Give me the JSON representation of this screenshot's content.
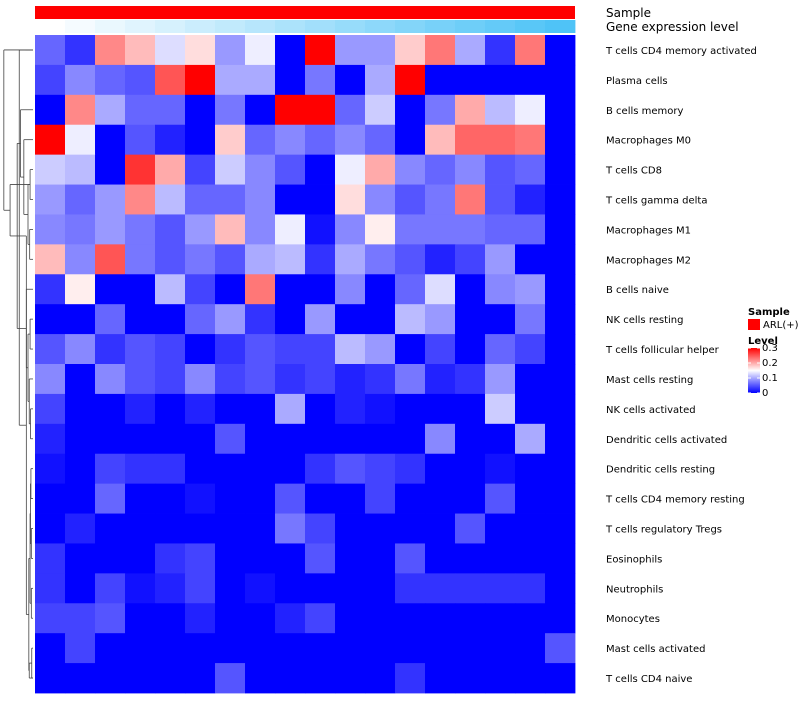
{
  "chart_data": {
    "type": "heatmap",
    "annotations": [
      {
        "name": "Sample",
        "kind": "categorical",
        "color": "#ff0000"
      },
      {
        "name": "Gene expression level",
        "kind": "gradient",
        "from": "#ffffff",
        "to": "#4fc3f7"
      }
    ],
    "legend": {
      "sample_title": "Sample",
      "sample_entry": "ARL(+)",
      "sample_color": "#ff0000",
      "level_title": "Level",
      "ticks": [
        "0.3",
        "0.2",
        "0.1",
        "0"
      ],
      "tick_values": [
        0.3,
        0.2,
        0.1,
        0
      ],
      "range": [
        0,
        0.3
      ]
    },
    "color_scale": {
      "low": "#0000ff",
      "mid": "#ffffff",
      "high": "#ff0000",
      "domain": [
        0,
        0.15,
        0.3
      ]
    },
    "rows": [
      "T cells CD4 memory activated",
      "Plasma cells",
      "B cells memory",
      "Macrophages M0",
      "T cells CD8",
      "T cells gamma delta",
      "Macrophages M1",
      "Macrophages M2",
      "B cells naive",
      "NK cells resting",
      "T cells follicular helper",
      "Mast cells resting",
      "NK cells activated",
      "Dendritic cells activated",
      "Dendritic cells resting",
      "T cells CD4 memory resting",
      "T cells regulatory  Tregs",
      "Eosinophils",
      "Neutrophils",
      "Monocytes",
      "Mast cells activated",
      "T cells CD4 naive"
    ],
    "n_columns": 18,
    "values": [
      [
        0.06,
        0.03,
        0.22,
        0.19,
        0.13,
        0.17,
        0.09,
        0.14,
        0.0,
        0.3,
        0.09,
        0.09,
        0.18,
        0.23,
        0.1,
        0.03,
        0.23,
        0.0
      ],
      [
        0.04,
        0.08,
        0.06,
        0.05,
        0.25,
        0.3,
        0.1,
        0.1,
        0.0,
        0.07,
        0.0,
        0.1,
        0.3,
        0.0,
        0.0,
        0.0,
        0.0,
        0.0
      ],
      [
        0.0,
        0.22,
        0.1,
        0.06,
        0.06,
        0.0,
        0.07,
        0.0,
        0.3,
        0.3,
        0.06,
        0.12,
        0.0,
        0.07,
        0.2,
        0.11,
        0.14,
        0.0
      ],
      [
        0.3,
        0.14,
        0.0,
        0.05,
        0.02,
        0.0,
        0.18,
        0.06,
        0.08,
        0.06,
        0.08,
        0.06,
        0.0,
        0.19,
        0.24,
        0.24,
        0.23,
        0.0
      ],
      [
        0.12,
        0.11,
        0.0,
        0.27,
        0.2,
        0.04,
        0.12,
        0.08,
        0.05,
        0.0,
        0.14,
        0.2,
        0.08,
        0.06,
        0.08,
        0.05,
        0.06,
        0.0
      ],
      [
        0.09,
        0.06,
        0.09,
        0.22,
        0.11,
        0.06,
        0.06,
        0.08,
        0.0,
        0.0,
        0.17,
        0.08,
        0.05,
        0.07,
        0.23,
        0.05,
        0.02,
        0.0
      ],
      [
        0.08,
        0.07,
        0.09,
        0.07,
        0.05,
        0.09,
        0.19,
        0.08,
        0.14,
        0.01,
        0.08,
        0.16,
        0.07,
        0.07,
        0.07,
        0.06,
        0.06,
        0.0
      ],
      [
        0.19,
        0.08,
        0.25,
        0.07,
        0.05,
        0.07,
        0.05,
        0.1,
        0.11,
        0.03,
        0.1,
        0.07,
        0.05,
        0.02,
        0.04,
        0.09,
        0.0,
        0.0
      ],
      [
        0.03,
        0.16,
        0.0,
        0.0,
        0.11,
        0.04,
        0.0,
        0.23,
        0.0,
        0.0,
        0.08,
        0.0,
        0.06,
        0.13,
        0.0,
        0.08,
        0.09,
        0.0
      ],
      [
        0.0,
        0.0,
        0.06,
        0.0,
        0.0,
        0.06,
        0.09,
        0.03,
        0.0,
        0.09,
        0.0,
        0.0,
        0.11,
        0.09,
        0.0,
        0.0,
        0.07,
        0.0
      ],
      [
        0.05,
        0.08,
        0.03,
        0.05,
        0.04,
        0.0,
        0.03,
        0.05,
        0.04,
        0.04,
        0.11,
        0.09,
        0.0,
        0.04,
        0.0,
        0.06,
        0.04,
        0.0
      ],
      [
        0.08,
        0.0,
        0.08,
        0.05,
        0.04,
        0.08,
        0.04,
        0.05,
        0.03,
        0.04,
        0.02,
        0.03,
        0.07,
        0.02,
        0.03,
        0.09,
        0.0,
        0.0
      ],
      [
        0.04,
        0.0,
        0.0,
        0.02,
        0.0,
        0.02,
        0.0,
        0.0,
        0.1,
        0.0,
        0.02,
        0.01,
        0.0,
        0.0,
        0.0,
        0.12,
        0.0,
        0.0
      ],
      [
        0.02,
        0.0,
        0.0,
        0.0,
        0.0,
        0.0,
        0.05,
        0.0,
        0.0,
        0.0,
        0.0,
        0.0,
        0.0,
        0.08,
        0.0,
        0.0,
        0.1,
        0.0
      ],
      [
        0.01,
        0.0,
        0.04,
        0.03,
        0.03,
        0.0,
        0.0,
        0.0,
        0.0,
        0.03,
        0.05,
        0.04,
        0.03,
        0.0,
        0.0,
        0.01,
        0.0,
        0.0
      ],
      [
        0.0,
        0.0,
        0.06,
        0.0,
        0.0,
        0.01,
        0.0,
        0.0,
        0.05,
        0.0,
        0.0,
        0.04,
        0.0,
        0.0,
        0.0,
        0.05,
        0.0,
        0.0
      ],
      [
        0.0,
        0.02,
        0.0,
        0.0,
        0.0,
        0.0,
        0.0,
        0.0,
        0.07,
        0.04,
        0.0,
        0.0,
        0.0,
        0.0,
        0.05,
        0.0,
        0.0,
        0.0
      ],
      [
        0.03,
        0.0,
        0.0,
        0.0,
        0.03,
        0.04,
        0.0,
        0.0,
        0.0,
        0.05,
        0.0,
        0.0,
        0.05,
        0.0,
        0.0,
        0.0,
        0.0,
        0.0
      ],
      [
        0.03,
        0.0,
        0.04,
        0.01,
        0.02,
        0.04,
        0.0,
        0.01,
        0.0,
        0.0,
        0.0,
        0.0,
        0.03,
        0.03,
        0.03,
        0.03,
        0.03,
        0.0
      ],
      [
        0.04,
        0.04,
        0.05,
        0.0,
        0.0,
        0.02,
        0.0,
        0.0,
        0.02,
        0.04,
        0.0,
        0.0,
        0.0,
        0.0,
        0.0,
        0.0,
        0.0,
        0.0
      ],
      [
        0.0,
        0.04,
        0.0,
        0.0,
        0.0,
        0.0,
        0.0,
        0.0,
        0.0,
        0.0,
        0.0,
        0.0,
        0.0,
        0.0,
        0.0,
        0.0,
        0.0,
        0.05
      ],
      [
        0.0,
        0.0,
        0.0,
        0.0,
        0.0,
        0.0,
        0.05,
        0.0,
        0.0,
        0.0,
        0.0,
        0.0,
        0.03,
        0.0,
        0.0,
        0.0,
        0.0,
        0.0
      ]
    ],
    "dendrogram": {
      "merges": [
        [
          1,
          0,
          0.18
        ],
        [
          -5,
          -6,
          0.07
        ],
        [
          -7,
          -8,
          0.08
        ],
        [
          2,
          3,
          0.12
        ],
        [
          -4,
          4,
          0.22
        ],
        [
          -3,
          5,
          0.3
        ],
        [
          -10,
          -11,
          0.07
        ],
        [
          -13,
          -14,
          0.06
        ],
        [
          -12,
          8,
          0.09
        ],
        [
          7,
          9,
          0.12
        ],
        [
          -9,
          10,
          0.16
        ],
        [
          6,
          11,
          0.38
        ],
        [
          -15,
          -16,
          0.05
        ],
        [
          -17,
          -18,
          0.04
        ],
        [
          -19,
          -20,
          0.04
        ],
        [
          13,
          14,
          0.06
        ],
        [
          -21,
          -22,
          0.03
        ],
        [
          15,
          16,
          0.07
        ],
        [
          -22,
          17,
          0.09
        ],
        [
          18,
          19,
          0.1
        ],
        [
          12,
          20,
          0.16
        ],
        [
          21,
          22,
          0.33
        ],
        [
          2,
          12,
          0.55
        ],
        [
          1,
          23,
          0.7
        ],
        [
          24,
          0,
          0.0
        ]
      ]
    }
  }
}
